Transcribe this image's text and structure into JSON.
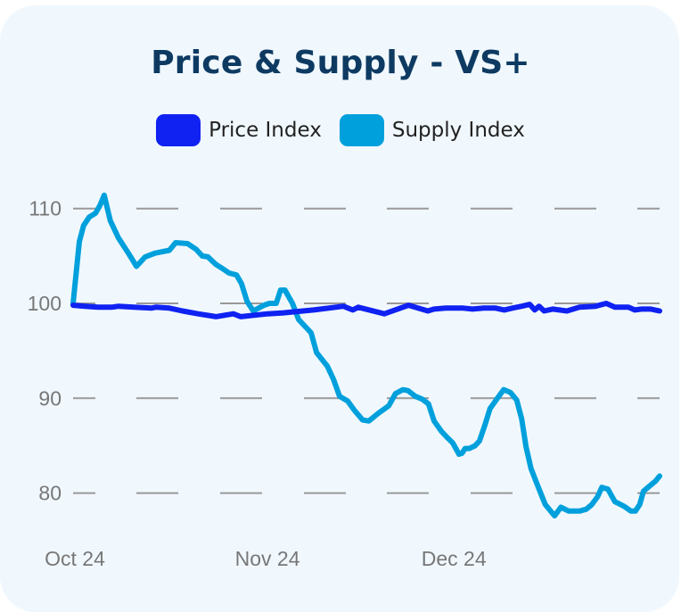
{
  "colors": {
    "card_background": "#f0f8fe",
    "title": "#0e3a62",
    "price": "#0f22f2",
    "supply": "#00a0dc",
    "grid": "#999999",
    "tick_text": "#777777"
  },
  "chart_data": {
    "type": "line",
    "title": "Price & Supply - VS+",
    "xlabel": "",
    "ylabel": "",
    "x_unit": "days since Oct 1 2024",
    "xlim": [
      0,
      94.4
    ],
    "ylim": [
      76,
      113
    ],
    "grid": true,
    "grid_style": "dashed-horizontal",
    "legend_position": "top-center",
    "y_ticks": [
      110,
      100,
      90,
      80
    ],
    "y_tick_labels": [
      "110",
      "100",
      "90",
      "80"
    ],
    "x_ticks": [
      0,
      31,
      61
    ],
    "x_tick_labels": [
      "Oct 24",
      "Nov 24",
      "Dec 24"
    ],
    "series": [
      {
        "name": "Price Index",
        "color": "#0f22f2",
        "x": [
          0,
          1.9,
          4.0,
          6.2,
          7.3,
          9.8,
          12.6,
          13.3,
          15.5,
          17.6,
          20.1,
          23.0,
          25.8,
          27.0,
          31.3,
          33.9,
          35.3,
          38.7,
          43.5,
          45.0,
          45.9,
          50.1,
          54.0,
          57.1,
          58.1,
          60.0,
          62.8,
          64.3,
          66.1,
          68.0,
          69.4,
          70.7,
          72.2,
          73.5,
          74.3,
          75.0,
          75.8,
          77.2,
          79.5,
          81.5,
          84.1,
          85.8,
          87.2,
          89.4,
          90.4,
          91.5,
          93.0,
          94.4
        ],
        "values": [
          99.8,
          99.7,
          99.6,
          99.6,
          99.7,
          99.6,
          99.5,
          99.6,
          99.5,
          99.2,
          98.9,
          98.6,
          98.9,
          98.6,
          98.9,
          99.0,
          99.1,
          99.3,
          99.7,
          99.3,
          99.6,
          98.9,
          99.8,
          99.2,
          99.4,
          99.5,
          99.5,
          99.4,
          99.5,
          99.5,
          99.3,
          99.5,
          99.7,
          99.9,
          99.3,
          99.7,
          99.2,
          99.4,
          99.2,
          99.6,
          99.7,
          100.0,
          99.6,
          99.6,
          99.3,
          99.4,
          99.4,
          99.2
        ]
      },
      {
        "name": "Supply Index",
        "color": "#00a0dc",
        "x": [
          0,
          1.0,
          1.7,
          2.6,
          3.6,
          4.3,
          5.0,
          6.0,
          7.3,
          8.8,
          10.2,
          11.6,
          13.2,
          15.5,
          16.5,
          18.4,
          19.8,
          20.8,
          21.7,
          23.0,
          24.2,
          25.1,
          26.3,
          27.1,
          28.0,
          29.0,
          30.7,
          31.6,
          32.7,
          33.4,
          34.1,
          35.3,
          36.3,
          38.3,
          39.2,
          40.9,
          41.9,
          42.9,
          44.2,
          45.3,
          46.6,
          47.6,
          49.1,
          50.8,
          51.9,
          53.1,
          53.9,
          55.1,
          56.2,
          57.2,
          58.1,
          59.3,
          60.3,
          61.1,
          62.1,
          62.6,
          63.1,
          63.8,
          64.7,
          65.4,
          66.3,
          67.1,
          68.3,
          69.3,
          70.4,
          71.4,
          72.2,
          72.9,
          73.7,
          74.7,
          76.0,
          77.5,
          78.5,
          79.8,
          81.5,
          82.6,
          83.5,
          84.4,
          85.1,
          86.1,
          87.2,
          88.7,
          89.8,
          90.5,
          91.2,
          91.8,
          92.7,
          93.8,
          94.4
        ],
        "values": [
          100.0,
          106.5,
          108.2,
          109.1,
          109.5,
          110.3,
          111.4,
          108.7,
          106.9,
          105.4,
          103.9,
          104.9,
          105.3,
          105.6,
          106.4,
          106.3,
          105.7,
          105.0,
          104.9,
          104.1,
          103.6,
          103.2,
          103.0,
          102.1,
          100.2,
          99.2,
          99.8,
          100.0,
          100.0,
          101.4,
          101.4,
          100.0,
          98.3,
          96.9,
          94.8,
          93.4,
          92.0,
          90.2,
          89.7,
          88.7,
          87.7,
          87.6,
          88.4,
          89.2,
          90.5,
          90.9,
          90.8,
          90.2,
          89.9,
          89.4,
          87.6,
          86.5,
          85.8,
          85.3,
          84.1,
          84.2,
          84.7,
          84.7,
          85.0,
          85.5,
          87.2,
          88.9,
          90.0,
          90.9,
          90.6,
          89.8,
          87.8,
          84.9,
          82.6,
          80.9,
          78.8,
          77.6,
          78.5,
          78.1,
          78.1,
          78.3,
          78.8,
          79.6,
          80.6,
          80.4,
          79.1,
          78.6,
          78.1,
          78.1,
          78.8,
          80.2,
          80.7,
          81.3,
          81.8
        ]
      }
    ]
  }
}
